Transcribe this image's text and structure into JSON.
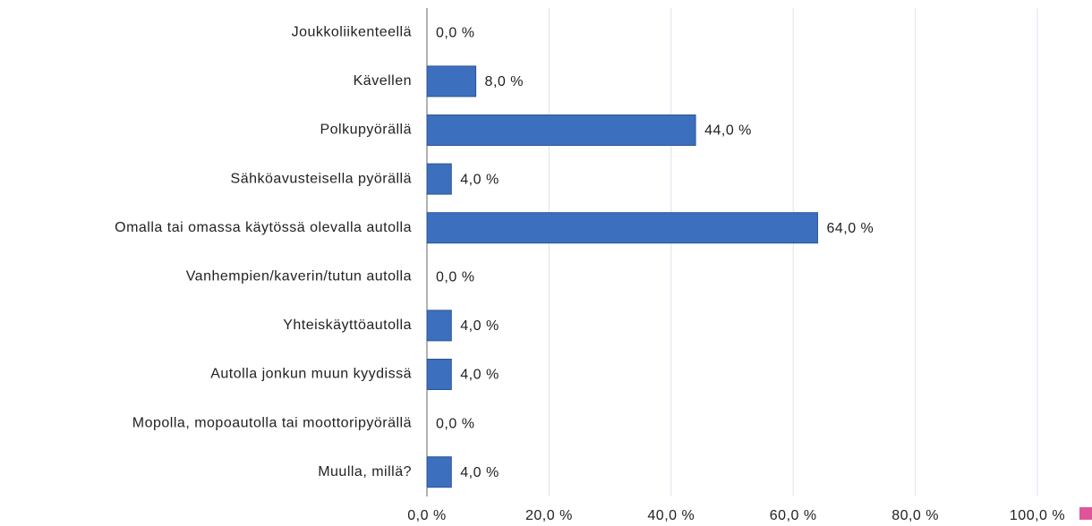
{
  "chart_data": {
    "type": "bar",
    "orientation": "horizontal",
    "categories": [
      "Joukkoliikenteellä",
      "Kävellen",
      "Polkupyörällä",
      "Sähköavusteisella pyörällä",
      "Omalla tai omassa käytössä olevalla autolla",
      "Vanhempien/kaverin/tutun autolla",
      "Yhteiskäyttöautolla",
      "Autolla jonkun muun kyydissä",
      "Mopolla, mopoautolla tai moottoripyörällä",
      "Muulla, millä?"
    ],
    "values": [
      0,
      8,
      44,
      4,
      64,
      0,
      4,
      4,
      0,
      4
    ],
    "value_labels": [
      "0,0 %",
      "8,0 %",
      "44,0 %",
      "4,0 %",
      "64,0 %",
      "0,0 %",
      "4,0 %",
      "4,0 %",
      "0,0 %",
      "4,0 %"
    ],
    "color": "#3c6fbd",
    "xlim": [
      0,
      100
    ],
    "xticks": [
      {
        "value": 0,
        "label": "0,0 %"
      },
      {
        "value": 20,
        "label": "20,0 %"
      },
      {
        "value": 40,
        "label": "40,0 %"
      },
      {
        "value": 60,
        "label": "60,0 %"
      },
      {
        "value": 80,
        "label": "80,0 %"
      },
      {
        "value": 100,
        "label": "100,0 %"
      }
    ],
    "grid": true
  }
}
